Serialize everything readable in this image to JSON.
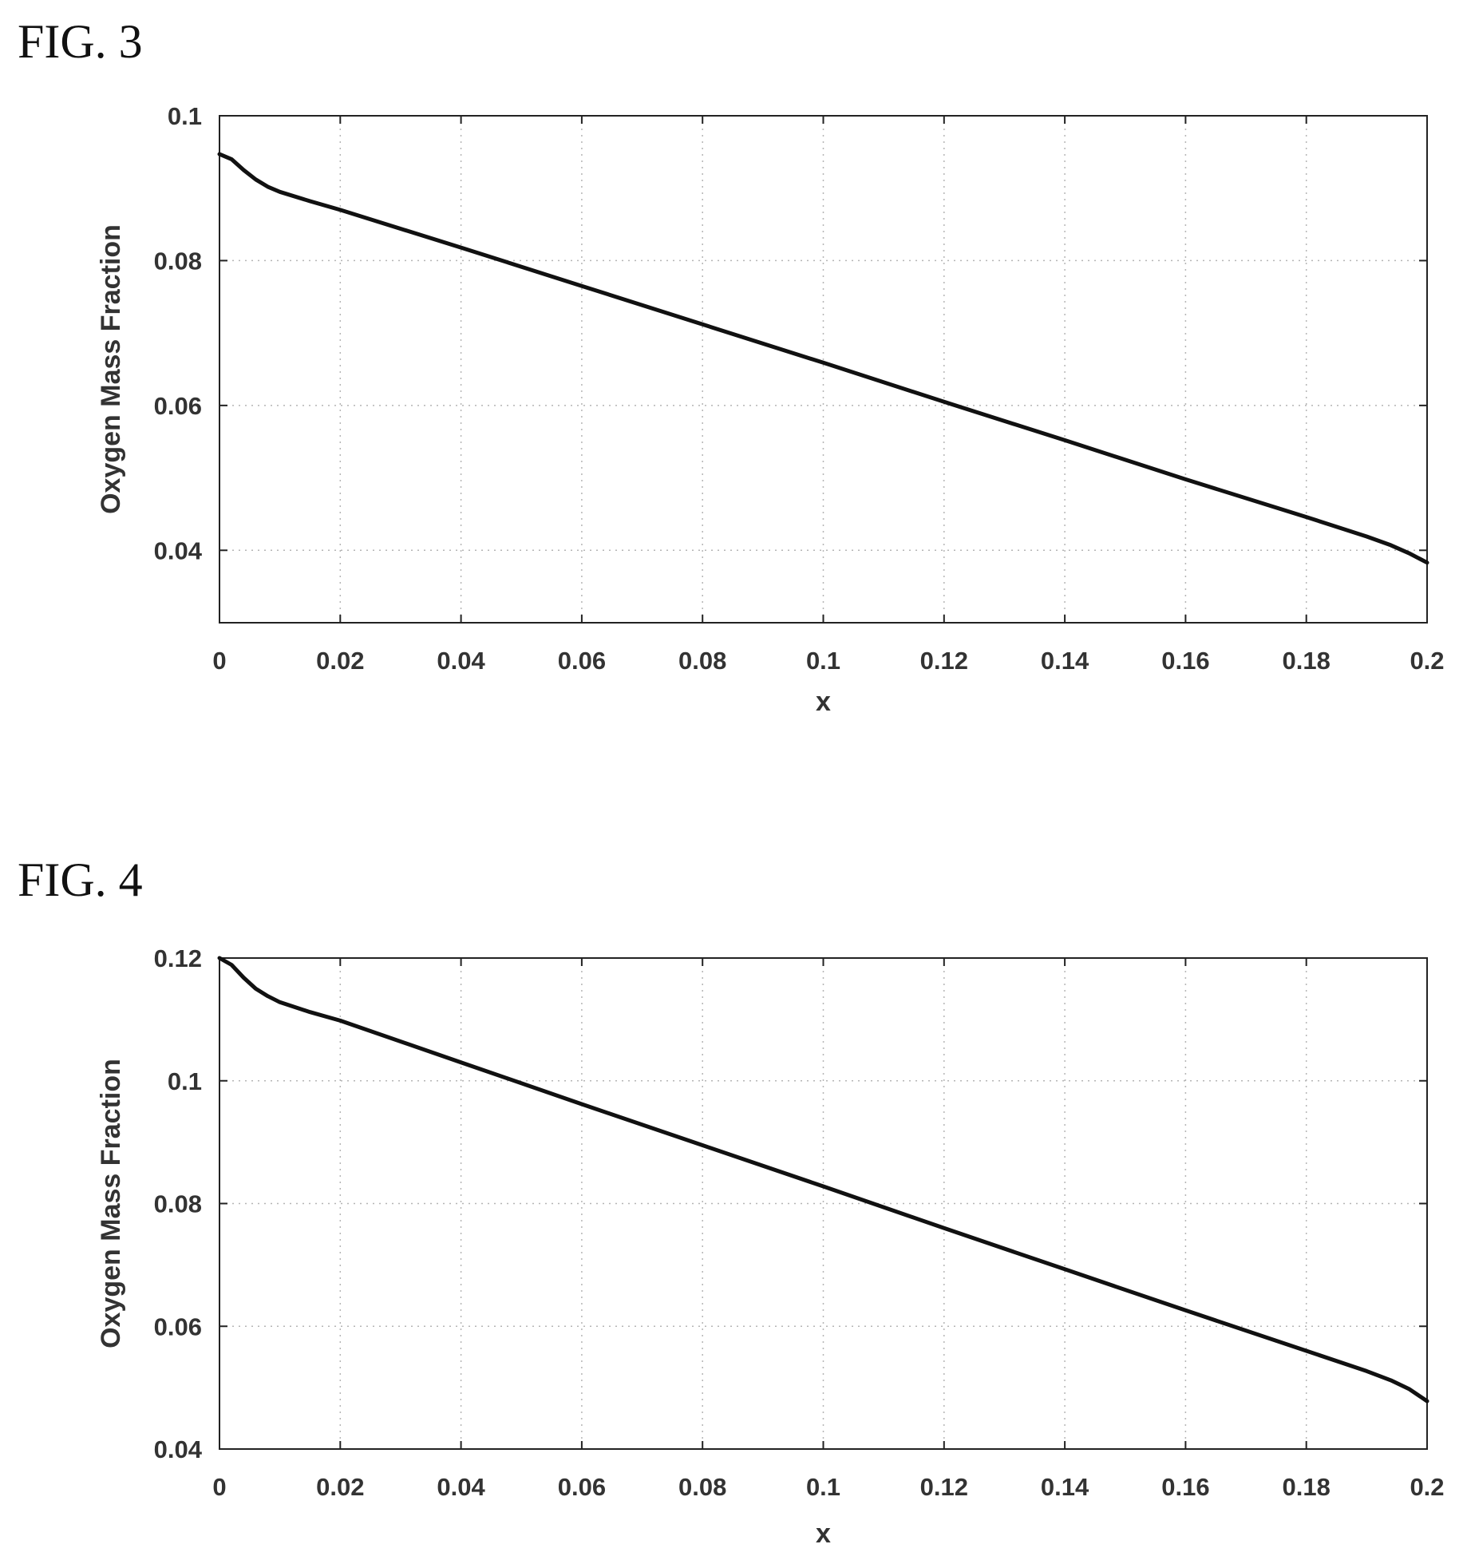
{
  "figures": [
    {
      "label": "FIG. 3"
    },
    {
      "label": "FIG. 4"
    }
  ],
  "chart_data": [
    {
      "type": "line",
      "title": "",
      "xlabel": "x",
      "ylabel": "Oxygen Mass Fraction",
      "xlim": [
        0,
        0.2
      ],
      "ylim": [
        0.03,
        0.1
      ],
      "xticks": [
        "0",
        "0.02",
        "0.04",
        "0.06",
        "0.08",
        "0.1",
        "0.12",
        "0.14",
        "0.16",
        "0.18",
        "0.2"
      ],
      "yticks": [
        "0.04",
        "0.06",
        "0.08",
        "0.1"
      ],
      "ytick_values": [
        0.04,
        0.06,
        0.08,
        0.1
      ],
      "grid": "dotted",
      "line_color": "#111111",
      "series": [
        {
          "x": [
            0,
            0.002,
            0.004,
            0.006,
            0.008,
            0.01,
            0.015,
            0.02,
            0.04,
            0.06,
            0.08,
            0.1,
            0.12,
            0.14,
            0.16,
            0.18,
            0.19,
            0.194,
            0.197,
            0.2
          ],
          "y": [
            0.0947,
            0.094,
            0.0925,
            0.0912,
            0.0902,
            0.0895,
            0.0882,
            0.087,
            0.0818,
            0.0765,
            0.0712,
            0.0659,
            0.0605,
            0.0552,
            0.0498,
            0.0446,
            0.0419,
            0.0407,
            0.0396,
            0.0383
          ]
        }
      ]
    },
    {
      "type": "line",
      "title": "",
      "xlabel": "x",
      "ylabel": "Oxygen Mass Fraction",
      "xlim": [
        0,
        0.2
      ],
      "ylim": [
        0.04,
        0.12
      ],
      "xticks": [
        "0",
        "0.02",
        "0.04",
        "0.06",
        "0.08",
        "0.1",
        "0.12",
        "0.14",
        "0.16",
        "0.18",
        "0.2"
      ],
      "yticks": [
        "0.04",
        "0.06",
        "0.08",
        "0.1",
        "0.12"
      ],
      "ytick_values": [
        0.04,
        0.06,
        0.08,
        0.1,
        0.12
      ],
      "grid": "dotted",
      "line_color": "#111111",
      "series": [
        {
          "x": [
            0,
            0.002,
            0.004,
            0.006,
            0.008,
            0.01,
            0.015,
            0.02,
            0.04,
            0.06,
            0.08,
            0.1,
            0.12,
            0.14,
            0.16,
            0.18,
            0.19,
            0.194,
            0.197,
            0.2
          ],
          "y": [
            0.12,
            0.1189,
            0.1168,
            0.115,
            0.1138,
            0.1128,
            0.1112,
            0.1098,
            0.103,
            0.0962,
            0.0895,
            0.0828,
            0.076,
            0.0693,
            0.0626,
            0.056,
            0.0527,
            0.0512,
            0.0498,
            0.0478
          ]
        }
      ]
    }
  ]
}
